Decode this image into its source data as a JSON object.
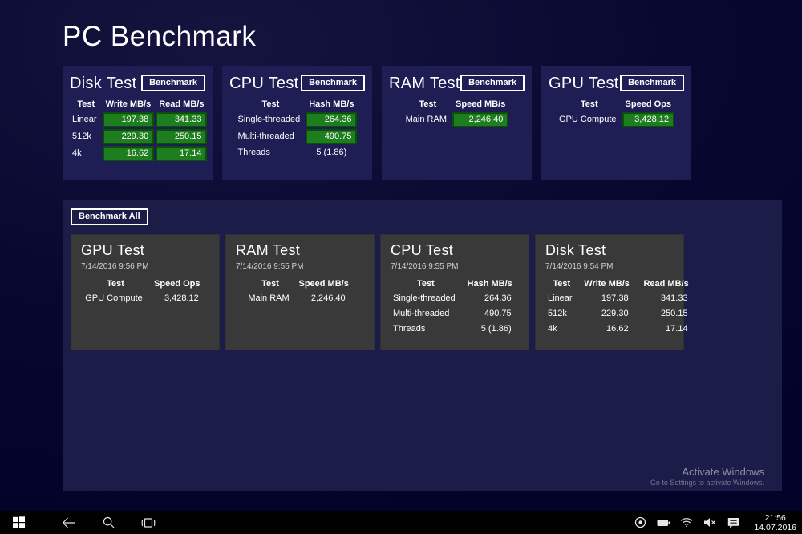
{
  "app": {
    "title": "PC Benchmark"
  },
  "top_panels": [
    {
      "title": "Disk Test",
      "button": "Benchmark",
      "columns": [
        "Test",
        "Write MB/s",
        "Read MB/s"
      ],
      "rows": [
        {
          "label": "Linear",
          "values": [
            "197.38",
            "341.33"
          ],
          "highlight": true
        },
        {
          "label": "512k",
          "values": [
            "229.30",
            "250.15"
          ],
          "highlight": true
        },
        {
          "label": "4k",
          "values": [
            "16.62",
            "17.14"
          ],
          "highlight": true
        }
      ]
    },
    {
      "title": "CPU Test",
      "button": "Benchmark",
      "columns": [
        "Test",
        "Hash MB/s"
      ],
      "rows": [
        {
          "label": "Single-threaded",
          "values": [
            "264.36"
          ],
          "highlight": true
        },
        {
          "label": "Multi-threaded",
          "values": [
            "490.75"
          ],
          "highlight": true
        },
        {
          "label": "Threads",
          "values": [
            "5 (1.86)"
          ],
          "highlight": false
        }
      ]
    },
    {
      "title": "RAM Test",
      "button": "Benchmark",
      "columns": [
        "Test",
        "Speed MB/s"
      ],
      "rows": [
        {
          "label": "Main RAM",
          "values": [
            "2,246.40"
          ],
          "highlight": true
        }
      ]
    },
    {
      "title": "GPU Test",
      "button": "Benchmark",
      "columns": [
        "Test",
        "Speed Ops"
      ],
      "rows": [
        {
          "label": "GPU Compute",
          "values": [
            "3,428.12"
          ],
          "highlight": true
        }
      ]
    }
  ],
  "history": {
    "button": "Benchmark All",
    "cards": [
      {
        "title": "GPU Test",
        "timestamp": "7/14/2016 9:56 PM",
        "columns": [
          "Test",
          "Speed Ops"
        ],
        "rows": [
          {
            "label": "GPU Compute",
            "values": [
              "3,428.12"
            ]
          }
        ]
      },
      {
        "title": "RAM Test",
        "timestamp": "7/14/2016 9:55 PM",
        "columns": [
          "Test",
          "Speed MB/s"
        ],
        "rows": [
          {
            "label": "Main RAM",
            "values": [
              "2,246.40"
            ]
          }
        ]
      },
      {
        "title": "CPU Test",
        "timestamp": "7/14/2016 9:55 PM",
        "columns": [
          "Test",
          "Hash MB/s"
        ],
        "rows": [
          {
            "label": "Single-threaded",
            "values": [
              "264.36"
            ]
          },
          {
            "label": "Multi-threaded",
            "values": [
              "490.75"
            ]
          },
          {
            "label": "Threads",
            "values": [
              "5 (1.86)"
            ]
          }
        ]
      },
      {
        "title": "Disk Test",
        "timestamp": "7/14/2016 9:54 PM",
        "columns": [
          "Test",
          "Write MB/s",
          "Read MB/s"
        ],
        "rows": [
          {
            "label": "Linear",
            "values": [
              "197.38",
              "341.33"
            ]
          },
          {
            "label": "512k",
            "values": [
              "229.30",
              "250.15"
            ]
          },
          {
            "label": "4k",
            "values": [
              "16.62",
              "17.14"
            ]
          }
        ]
      }
    ]
  },
  "watermark": {
    "line1": "Activate Windows",
    "line2": "Go to Settings to activate Windows."
  },
  "taskbar": {
    "time": "21:56",
    "date": "14.07.2016",
    "left_icons": [
      "start-icon",
      "back-icon",
      "search-icon",
      "task-view-icon"
    ],
    "tray_icons": [
      "status-circle-icon",
      "battery-icon",
      "wifi-icon",
      "volume-muted-icon",
      "action-center-icon"
    ]
  },
  "colors": {
    "background": "#07072f",
    "panel_blue": "#1e1e55",
    "history_blue": "#1c1c49",
    "card_gray": "#393939",
    "result_green": "#1e7d1e",
    "result_green_border": "#0a4f0a",
    "taskbar_black": "#010101"
  }
}
